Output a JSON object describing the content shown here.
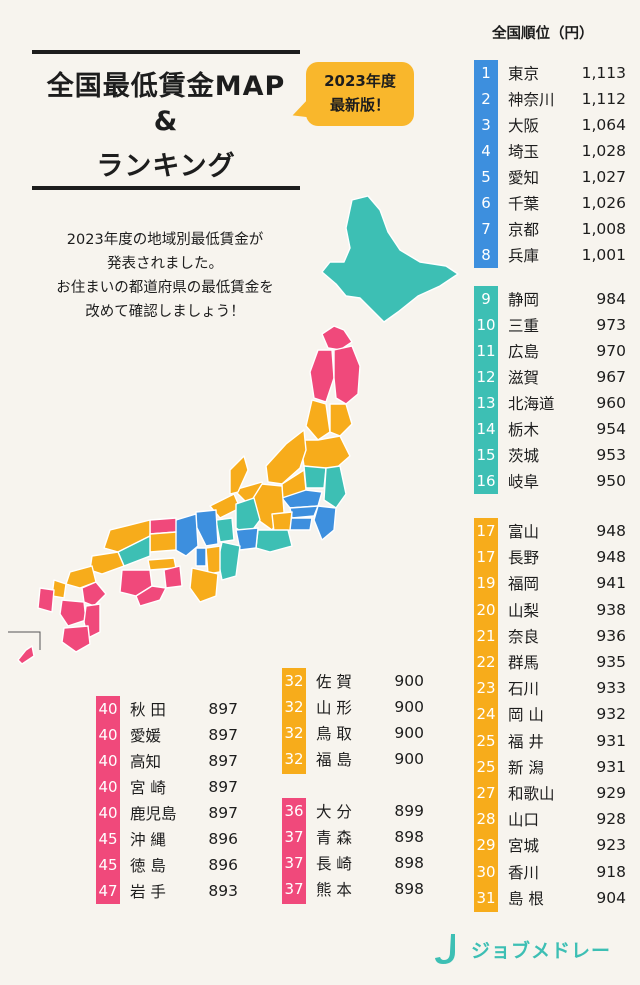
{
  "title": {
    "line1": "全国最低賃金MAP",
    "line2": "&",
    "line3": "ランキング"
  },
  "badge": {
    "line1": "2023年度",
    "line2": "最新版！"
  },
  "intro": {
    "line1": "2023年度の地域別最低賃金が",
    "line2": "発表されました。",
    "line3": "お住まいの都道府県の最低賃金を",
    "line4": "改めて確認しましょう！"
  },
  "ranking_header": "全国順位（円）",
  "colors": {
    "tier1": "#3d8fde",
    "tier2": "#3dbfb4",
    "tier3": "#f7ac1b",
    "tier4": "#f0497b"
  },
  "rank_group_1": [
    {
      "rank": "1",
      "pref": "東京",
      "wage": "1,113"
    },
    {
      "rank": "2",
      "pref": "神奈川",
      "wage": "1,112"
    },
    {
      "rank": "3",
      "pref": "大阪",
      "wage": "1,064"
    },
    {
      "rank": "4",
      "pref": "埼玉",
      "wage": "1,028"
    },
    {
      "rank": "5",
      "pref": "愛知",
      "wage": "1,027"
    },
    {
      "rank": "6",
      "pref": "千葉",
      "wage": "1,026"
    },
    {
      "rank": "7",
      "pref": "京都",
      "wage": "1,008"
    },
    {
      "rank": "8",
      "pref": "兵庫",
      "wage": "1,001"
    }
  ],
  "rank_group_2": [
    {
      "rank": "9",
      "pref": "静岡",
      "wage": "984"
    },
    {
      "rank": "10",
      "pref": "三重",
      "wage": "973"
    },
    {
      "rank": "11",
      "pref": "広島",
      "wage": "970"
    },
    {
      "rank": "12",
      "pref": "滋賀",
      "wage": "967"
    },
    {
      "rank": "13",
      "pref": "北海道",
      "wage": "960"
    },
    {
      "rank": "14",
      "pref": "栃木",
      "wage": "954"
    },
    {
      "rank": "15",
      "pref": "茨城",
      "wage": "953"
    },
    {
      "rank": "16",
      "pref": "岐阜",
      "wage": "950"
    }
  ],
  "rank_group_3": [
    {
      "rank": "17",
      "pref": "富山",
      "wage": "948"
    },
    {
      "rank": "17",
      "pref": "長野",
      "wage": "948"
    },
    {
      "rank": "19",
      "pref": "福岡",
      "wage": "941"
    },
    {
      "rank": "20",
      "pref": "山梨",
      "wage": "938"
    },
    {
      "rank": "21",
      "pref": "奈良",
      "wage": "936"
    },
    {
      "rank": "22",
      "pref": "群馬",
      "wage": "935"
    },
    {
      "rank": "23",
      "pref": "石川",
      "wage": "933"
    },
    {
      "rank": "24",
      "pref": "岡 山",
      "wage": "932"
    },
    {
      "rank": "25",
      "pref": "福 井",
      "wage": "931"
    },
    {
      "rank": "25",
      "pref": "新 潟",
      "wage": "931"
    },
    {
      "rank": "27",
      "pref": "和歌山",
      "wage": "929"
    },
    {
      "rank": "28",
      "pref": "山口",
      "wage": "928"
    },
    {
      "rank": "29",
      "pref": "宮城",
      "wage": "923"
    },
    {
      "rank": "30",
      "pref": "香川",
      "wage": "918"
    },
    {
      "rank": "31",
      "pref": "島 根",
      "wage": "904"
    }
  ],
  "rank_group_4": [
    {
      "rank": "32",
      "pref": "佐 賀",
      "wage": "900"
    },
    {
      "rank": "32",
      "pref": "山 形",
      "wage": "900"
    },
    {
      "rank": "32",
      "pref": "鳥 取",
      "wage": "900"
    },
    {
      "rank": "32",
      "pref": "福 島",
      "wage": "900"
    }
  ],
  "rank_group_5": [
    {
      "rank": "36",
      "pref": "大 分",
      "wage": "899"
    },
    {
      "rank": "37",
      "pref": "青 森",
      "wage": "898"
    },
    {
      "rank": "37",
      "pref": "長 崎",
      "wage": "898"
    },
    {
      "rank": "37",
      "pref": "熊 本",
      "wage": "898"
    }
  ],
  "rank_group_6": [
    {
      "rank": "40",
      "pref": "秋 田",
      "wage": "897"
    },
    {
      "rank": "40",
      "pref": "愛媛",
      "wage": "897"
    },
    {
      "rank": "40",
      "pref": "高知",
      "wage": "897"
    },
    {
      "rank": "40",
      "pref": "宮 崎",
      "wage": "897"
    },
    {
      "rank": "40",
      "pref": "鹿児島",
      "wage": "897"
    },
    {
      "rank": "45",
      "pref": "沖 縄",
      "wage": "896"
    },
    {
      "rank": "45",
      "pref": "徳 島",
      "wage": "896"
    },
    {
      "rank": "47",
      "pref": "岩 手",
      "wage": "893"
    }
  ],
  "logo": {
    "text": "ジョブメドレー"
  }
}
